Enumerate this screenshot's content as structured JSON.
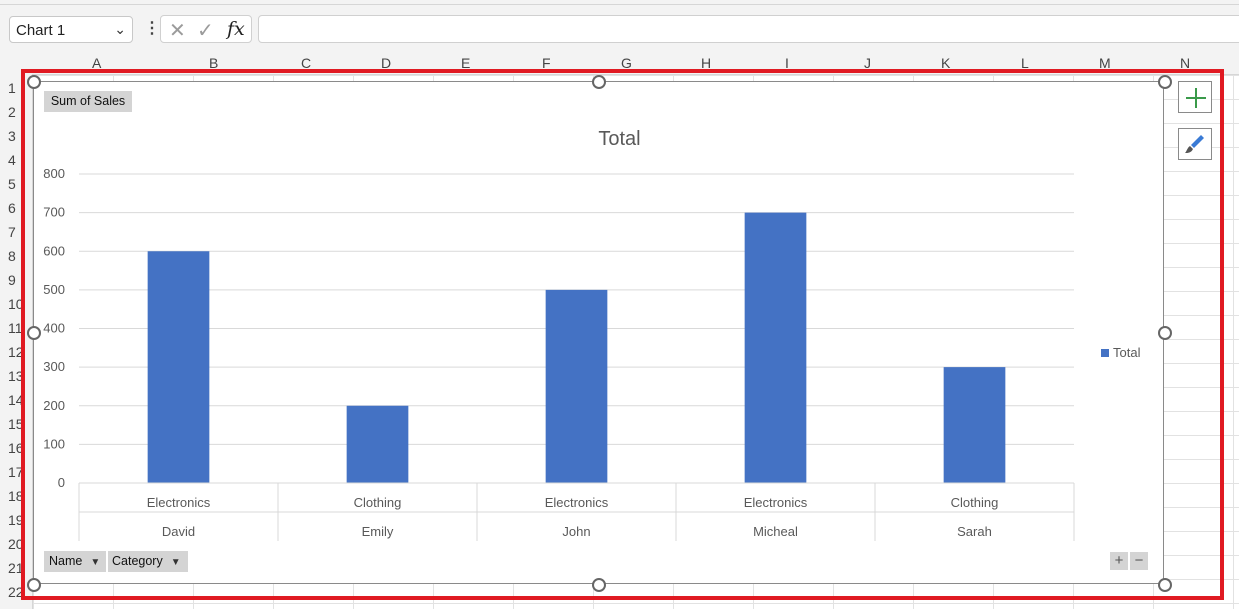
{
  "formula_bar": {
    "name_box": "Chart 1",
    "cancel_icon": "✕",
    "enter_icon": "✓",
    "fx_label": "fx",
    "formula": ""
  },
  "columns": [
    "A",
    "B",
    "C",
    "D",
    "E",
    "F",
    "G",
    "H",
    "I",
    "J",
    "K",
    "L",
    "M",
    "N"
  ],
  "rows": [
    "1",
    "2",
    "3",
    "4",
    "5",
    "6",
    "7",
    "8",
    "9",
    "10",
    "11",
    "12",
    "13",
    "14",
    "15",
    "16",
    "17",
    "18",
    "19",
    "20",
    "21",
    "22"
  ],
  "pivot": {
    "value_field": "Sum of Sales",
    "axis_fields": [
      "Name",
      "Category"
    ]
  },
  "zoom": {
    "expand": "+",
    "collapse": "−"
  },
  "chart_data": {
    "type": "bar",
    "title": "Total",
    "categories": [
      {
        "inner": "Electronics",
        "outer": "David"
      },
      {
        "inner": "Clothing",
        "outer": "Emily"
      },
      {
        "inner": "Electronics",
        "outer": "John"
      },
      {
        "inner": "Electronics",
        "outer": "Micheal"
      },
      {
        "inner": "Clothing",
        "outer": "Sarah"
      }
    ],
    "series": [
      {
        "name": "Total",
        "values": [
          600,
          200,
          500,
          700,
          300
        ],
        "color": "#4472c4"
      }
    ],
    "ylim": [
      0,
      800
    ],
    "yticks": [
      0,
      100,
      200,
      300,
      400,
      500,
      600,
      700,
      800
    ],
    "grid": true,
    "legend_position": "right"
  },
  "colors": {
    "bar": "#4472c4",
    "highlight_frame": "#e01a22"
  }
}
